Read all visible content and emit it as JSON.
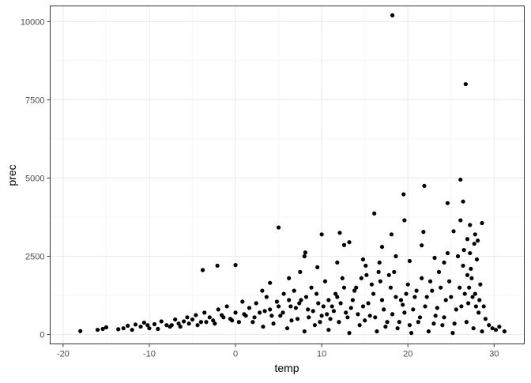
{
  "chart_data": {
    "type": "scatter",
    "xlabel": "temp",
    "ylabel": "prec",
    "xlim": [
      -21.5,
      33.5
    ],
    "ylim": [
      -300,
      10500
    ],
    "xticks": [
      -20,
      -10,
      0,
      10,
      20,
      30
    ],
    "yticks": [
      0,
      2500,
      5000,
      7500,
      10000
    ],
    "xtick_labels": [
      "-20",
      "-10",
      "0",
      "10",
      "20",
      "30"
    ],
    "ytick_labels": [
      "0",
      "2500",
      "5000",
      "7500",
      "10000"
    ],
    "grid": true,
    "point_color": "#000000",
    "points": [
      [
        18.2,
        10200
      ],
      [
        26.7,
        8000
      ],
      [
        26.1,
        4950
      ],
      [
        21.9,
        4750
      ],
      [
        19.5,
        4480
      ],
      [
        26.4,
        4250
      ],
      [
        24.6,
        4200
      ],
      [
        16.1,
        3870
      ],
      [
        19.6,
        3650
      ],
      [
        5.0,
        3420
      ],
      [
        12.1,
        3250
      ],
      [
        10.0,
        3200
      ],
      [
        18.1,
        3200
      ],
      [
        21.8,
        3280
      ],
      [
        -3.8,
        2060
      ],
      [
        -2.1,
        2200
      ],
      [
        0.0,
        2220
      ],
      [
        8.1,
        2620
      ],
      [
        8.0,
        2500
      ],
      [
        12.6,
        2860
      ],
      [
        13.2,
        2950
      ],
      [
        15.1,
        2200
      ],
      [
        21.6,
        2850
      ],
      [
        26.1,
        3650
      ],
      [
        27.2,
        3500
      ],
      [
        28.6,
        3560
      ],
      [
        25.3,
        3300
      ],
      [
        27.8,
        3200
      ],
      [
        26.9,
        3050
      ],
      [
        17.0,
        2800
      ],
      [
        18.6,
        2500
      ],
      [
        14.8,
        2400
      ],
      [
        11.8,
        2300
      ],
      [
        9.5,
        2150
      ],
      [
        7.5,
        2000
      ],
      [
        23.1,
        2450
      ],
      [
        24.2,
        2300
      ],
      [
        20.2,
        2350
      ],
      [
        16.7,
        2300
      ],
      [
        6.2,
        1800
      ],
      [
        4.0,
        1650
      ],
      [
        3.1,
        1400
      ],
      [
        -18.0,
        110
      ],
      [
        -16.0,
        150
      ],
      [
        -15.4,
        180
      ],
      [
        -15.0,
        230
      ],
      [
        -13.6,
        170
      ],
      [
        -13.0,
        200
      ],
      [
        -12.5,
        280
      ],
      [
        -12.0,
        150
      ],
      [
        -11.6,
        320
      ],
      [
        -11.0,
        250
      ],
      [
        -10.6,
        380
      ],
      [
        -10.2,
        300
      ],
      [
        -10.0,
        200
      ],
      [
        -9.4,
        330
      ],
      [
        -9.0,
        180
      ],
      [
        -8.6,
        420
      ],
      [
        -8.0,
        300
      ],
      [
        -7.6,
        250
      ],
      [
        -7.0,
        480
      ],
      [
        -6.6,
        350
      ],
      [
        -6.0,
        420
      ],
      [
        -5.6,
        550
      ],
      [
        -5.0,
        480
      ],
      [
        -4.6,
        620
      ],
      [
        -4.0,
        400
      ],
      [
        -3.6,
        700
      ],
      [
        -3.0,
        550
      ],
      [
        -2.6,
        450
      ],
      [
        -2.0,
        800
      ],
      [
        -1.6,
        620
      ],
      [
        -1.0,
        900
      ],
      [
        -0.6,
        500
      ],
      [
        0.0,
        700
      ],
      [
        0.4,
        400
      ],
      [
        0.8,
        1050
      ],
      [
        1.2,
        600
      ],
      [
        1.6,
        850
      ],
      [
        2.0,
        400
      ],
      [
        2.4,
        1000
      ],
      [
        2.8,
        700
      ],
      [
        3.2,
        250
      ],
      [
        3.6,
        1200
      ],
      [
        4.0,
        800
      ],
      [
        4.4,
        350
      ],
      [
        4.8,
        1050
      ],
      [
        5.2,
        600
      ],
      [
        5.6,
        1300
      ],
      [
        6.0,
        200
      ],
      [
        6.4,
        900
      ],
      [
        6.8,
        1400
      ],
      [
        7.2,
        500
      ],
      [
        7.6,
        1100
      ],
      [
        8.0,
        100
      ],
      [
        8.4,
        800
      ],
      [
        8.8,
        1500
      ],
      [
        9.2,
        300
      ],
      [
        9.6,
        1000
      ],
      [
        10.0,
        600
      ],
      [
        10.4,
        1700
      ],
      [
        10.8,
        150
      ],
      [
        11.2,
        900
      ],
      [
        11.6,
        1300
      ],
      [
        12.0,
        400
      ],
      [
        12.4,
        1800
      ],
      [
        12.8,
        700
      ],
      [
        13.2,
        50
      ],
      [
        13.6,
        1100
      ],
      [
        14.0,
        1500
      ],
      [
        14.4,
        300
      ],
      [
        14.8,
        900
      ],
      [
        15.2,
        1900
      ],
      [
        15.6,
        600
      ],
      [
        16.0,
        1300
      ],
      [
        16.4,
        100
      ],
      [
        16.8,
        1700
      ],
      [
        17.2,
        800
      ],
      [
        17.6,
        400
      ],
      [
        18.0,
        1500
      ],
      [
        18.4,
        2000
      ],
      [
        18.8,
        200
      ],
      [
        19.2,
        1100
      ],
      [
        19.6,
        700
      ],
      [
        20.0,
        1600
      ],
      [
        20.4,
        50
      ],
      [
        20.8,
        1200
      ],
      [
        21.2,
        400
      ],
      [
        21.6,
        1800
      ],
      [
        22.0,
        900
      ],
      [
        22.4,
        100
      ],
      [
        22.8,
        1400
      ],
      [
        23.2,
        600
      ],
      [
        23.6,
        2000
      ],
      [
        24.0,
        300
      ],
      [
        24.4,
        1100
      ],
      [
        24.8,
        1700
      ],
      [
        25.2,
        50
      ],
      [
        25.6,
        800
      ],
      [
        26.0,
        1500
      ],
      [
        26.4,
        2200
      ],
      [
        26.8,
        400
      ],
      [
        27.0,
        1000
      ],
      [
        27.2,
        2600
      ],
      [
        27.4,
        1800
      ],
      [
        27.6,
        200
      ],
      [
        27.8,
        1300
      ],
      [
        28.0,
        2400
      ],
      [
        28.2,
        700
      ],
      [
        28.4,
        1600
      ],
      [
        28.6,
        100
      ],
      [
        28.8,
        900
      ],
      [
        29.0,
        500
      ],
      [
        29.4,
        300
      ],
      [
        29.8,
        200
      ],
      [
        30.2,
        150
      ],
      [
        30.6,
        250
      ],
      [
        31.2,
        100
      ],
      [
        5.5,
        700
      ],
      [
        6.5,
        450
      ],
      [
        7.0,
        850
      ],
      [
        8.5,
        550
      ],
      [
        9.0,
        750
      ],
      [
        9.8,
        400
      ],
      [
        10.2,
        900
      ],
      [
        10.6,
        650
      ],
      [
        11.0,
        500
      ],
      [
        11.4,
        750
      ],
      [
        12.2,
        1000
      ],
      [
        13.0,
        550
      ],
      [
        13.4,
        850
      ],
      [
        14.2,
        650
      ],
      [
        15.0,
        450
      ],
      [
        15.4,
        1000
      ],
      [
        16.2,
        550
      ],
      [
        17.0,
        1100
      ],
      [
        17.4,
        250
      ],
      [
        18.2,
        650
      ],
      [
        19.0,
        400
      ],
      [
        19.4,
        950
      ],
      [
        20.2,
        300
      ],
      [
        20.6,
        800
      ],
      [
        21.4,
        550
      ],
      [
        22.2,
        1200
      ],
      [
        23.0,
        350
      ],
      [
        23.4,
        850
      ],
      [
        24.2,
        550
      ],
      [
        25.0,
        1200
      ],
      [
        25.4,
        350
      ],
      [
        26.2,
        900
      ],
      [
        26.6,
        1300
      ],
      [
        27.1,
        1500
      ],
      [
        27.5,
        1200
      ],
      [
        27.9,
        900
      ],
      [
        28.3,
        1100
      ],
      [
        26.9,
        1900
      ],
      [
        27.3,
        2100
      ],
      [
        27.7,
        2900
      ],
      [
        28.1,
        3000
      ],
      [
        26.5,
        2700
      ],
      [
        25.8,
        2500
      ],
      [
        24.6,
        2600
      ],
      [
        23.8,
        1500
      ],
      [
        22.6,
        1700
      ],
      [
        21.0,
        1400
      ],
      [
        19.8,
        1300
      ],
      [
        18.6,
        1200
      ],
      [
        17.8,
        1900
      ],
      [
        16.6,
        2000
      ],
      [
        15.8,
        1600
      ],
      [
        14.6,
        1800
      ],
      [
        13.8,
        1400
      ],
      [
        12.6,
        1500
      ],
      [
        11.8,
        1200
      ],
      [
        10.8,
        1100
      ],
      [
        9.4,
        1300
      ],
      [
        8.2,
        1200
      ],
      [
        7.4,
        1000
      ],
      [
        6.2,
        1100
      ],
      [
        5.0,
        900
      ],
      [
        4.2,
        600
      ],
      [
        3.4,
        750
      ],
      [
        2.2,
        550
      ],
      [
        1.0,
        650
      ],
      [
        -0.4,
        450
      ],
      [
        -1.4,
        550
      ],
      [
        -2.4,
        350
      ],
      [
        -3.4,
        400
      ],
      [
        -4.4,
        300
      ],
      [
        -5.4,
        350
      ],
      [
        -6.4,
        250
      ],
      [
        -7.4,
        300
      ]
    ]
  }
}
